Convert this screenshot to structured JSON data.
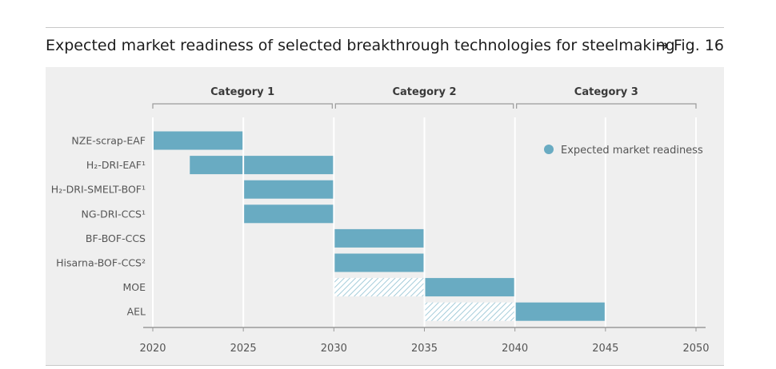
{
  "header": {
    "title": "Expected market readiness of selected breakthrough technologies for steelmaking",
    "figure_ref": "→ Fig. 16"
  },
  "colors": {
    "bar": "#69abc2",
    "hatch_line": "#8fc0d1",
    "hatch_bg": "#ffffff",
    "panel": "#efefef",
    "grid": "#ffffff",
    "axis": "#9a9a9a",
    "text": "#555555"
  },
  "chart_data": {
    "type": "bar",
    "orientation": "horizontal",
    "title": "Expected market readiness of selected breakthrough technologies for steelmaking",
    "xlabel": "",
    "ylabel": "",
    "xlim": [
      2020,
      2050
    ],
    "xticks": [
      "2020",
      "2025",
      "2030",
      "2035",
      "2040",
      "2045",
      "2050"
    ],
    "categories_groups": [
      {
        "label": "Category 1",
        "from": 2020,
        "to": 2030
      },
      {
        "label": "Category 2",
        "from": 2030,
        "to": 2040
      },
      {
        "label": "Category 3",
        "from": 2040,
        "to": 2050
      }
    ],
    "legend": {
      "label": "Expected market readiness",
      "position": "top-right"
    },
    "rows": [
      {
        "label": "NZE-scrap-EAF",
        "segments": [
          {
            "from": 2020,
            "to": 2025,
            "style": "solid"
          }
        ]
      },
      {
        "label": "H₂-DRI-EAF¹",
        "segments": [
          {
            "from": 2022,
            "to": 2025,
            "style": "solid"
          },
          {
            "from": 2025,
            "to": 2030,
            "style": "solid"
          }
        ]
      },
      {
        "label": "H₂-DRI-SMELT-BOF¹",
        "segments": [
          {
            "from": 2025,
            "to": 2030,
            "style": "solid"
          }
        ]
      },
      {
        "label": "NG-DRI-CCS¹",
        "segments": [
          {
            "from": 2025,
            "to": 2030,
            "style": "solid"
          }
        ]
      },
      {
        "label": "BF-BOF-CCS",
        "segments": [
          {
            "from": 2030,
            "to": 2035,
            "style": "solid"
          }
        ]
      },
      {
        "label": "Hisarna-BOF-CCS²",
        "segments": [
          {
            "from": 2030,
            "to": 2035,
            "style": "solid"
          }
        ]
      },
      {
        "label": "MOE",
        "segments": [
          {
            "from": 2030,
            "to": 2035,
            "style": "hatched"
          },
          {
            "from": 2035,
            "to": 2040,
            "style": "solid"
          }
        ]
      },
      {
        "label": "AEL",
        "segments": [
          {
            "from": 2035,
            "to": 2040,
            "style": "hatched"
          },
          {
            "from": 2040,
            "to": 2045,
            "style": "solid"
          }
        ]
      }
    ]
  }
}
